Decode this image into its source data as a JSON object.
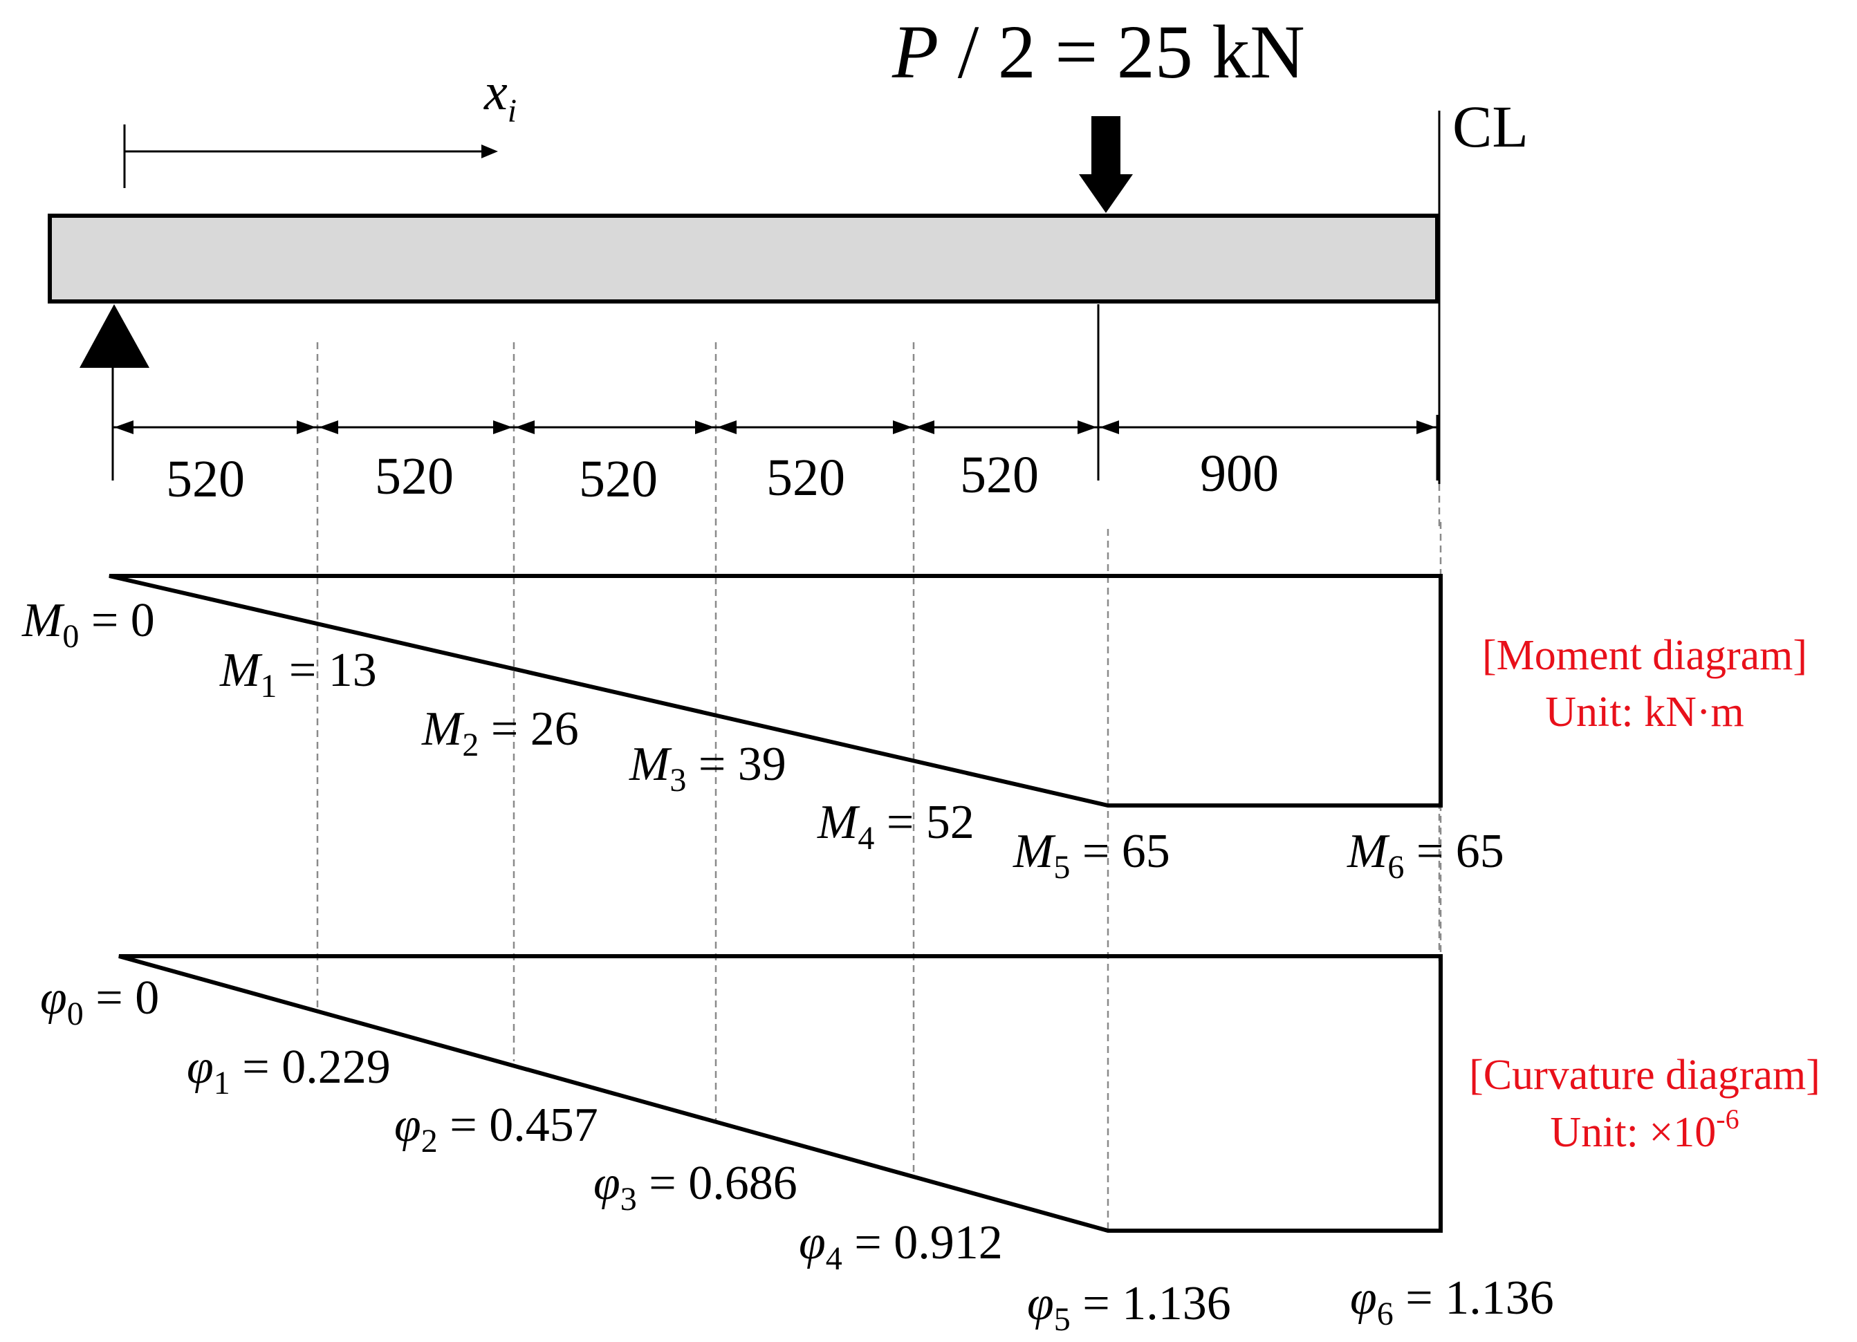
{
  "load": {
    "symbol": "P",
    "text": " / 2 = 25 kN",
    "arrow_color": "#000000"
  },
  "axis": {
    "symbol": "x",
    "subscript": "i"
  },
  "centerline": {
    "symbol": "CL"
  },
  "beam": {
    "fill_color": "#d9d9d9",
    "stroke_color": "#000000"
  },
  "spans": [
    {
      "label": "520"
    },
    {
      "label": "520"
    },
    {
      "label": "520"
    },
    {
      "label": "520"
    },
    {
      "label": "520"
    },
    {
      "label": "900"
    }
  ],
  "moment": {
    "title": "[Moment diagram]",
    "unit": "Unit: kN·m",
    "symbol": "M",
    "points": [
      {
        "index": "0",
        "value": "0"
      },
      {
        "index": "1",
        "value": "13"
      },
      {
        "index": "2",
        "value": "26"
      },
      {
        "index": "3",
        "value": "39"
      },
      {
        "index": "4",
        "value": "52"
      },
      {
        "index": "5",
        "value": "65"
      },
      {
        "index": "6",
        "value": "65"
      }
    ]
  },
  "curvature": {
    "title": "[Curvature diagram]",
    "unit_prefix": "Unit: ×10",
    "unit_exponent": "-6",
    "symbol": "φ",
    "points": [
      {
        "index": "0",
        "value": "0"
      },
      {
        "index": "1",
        "value": "0.229"
      },
      {
        "index": "2",
        "value": "0.457"
      },
      {
        "index": "3",
        "value": "0.686"
      },
      {
        "index": "4",
        "value": "0.912"
      },
      {
        "index": "5",
        "value": "1.136"
      },
      {
        "index": "6",
        "value": "1.136"
      }
    ]
  },
  "colors": {
    "annotation": "#e8101a",
    "lines": "#000000",
    "guides": "#8a8a8a"
  }
}
